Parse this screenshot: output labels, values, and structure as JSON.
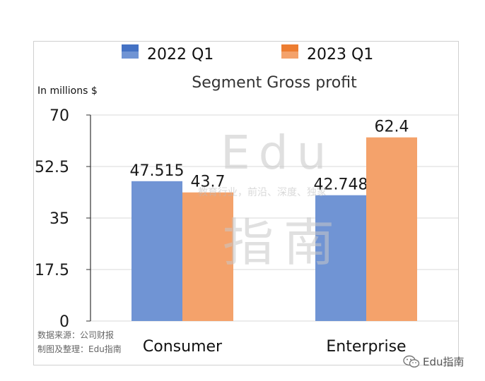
{
  "chart_data": {
    "type": "bar",
    "title": "Segment Gross profit",
    "ylabel": "In millions $",
    "xlabel": "",
    "categories": [
      "Consumer",
      "Enterprise"
    ],
    "series": [
      {
        "name": "2022 Q1",
        "values": [
          47.515,
          42.748
        ],
        "labels": [
          "47.515",
          "42.748"
        ],
        "color": "#7094D4",
        "legend_color": "#4472C4"
      },
      {
        "name": "2023 Q1",
        "values": [
          43.7,
          62.4
        ],
        "labels": [
          "43.7",
          "62.4"
        ],
        "color": "#F4A26B",
        "legend_color": "#ED7D31"
      }
    ],
    "ylim": [
      0,
      70
    ],
    "yticks": [
      0,
      17.5,
      35,
      52.5,
      70
    ],
    "ytick_labels": [
      "0",
      "17.5",
      "35",
      "52.5",
      "70"
    ],
    "grid": true,
    "legend": "top"
  },
  "watermark": {
    "main": "Edu",
    "sub": "教育行业，前沿、深度、独家",
    "bottom": "指南"
  },
  "source": {
    "line1": "数据来源：公司财报",
    "line2": "制图及整理：Edu指南"
  },
  "brand": {
    "icon": "wechat-icon",
    "label": "Edu指南"
  }
}
